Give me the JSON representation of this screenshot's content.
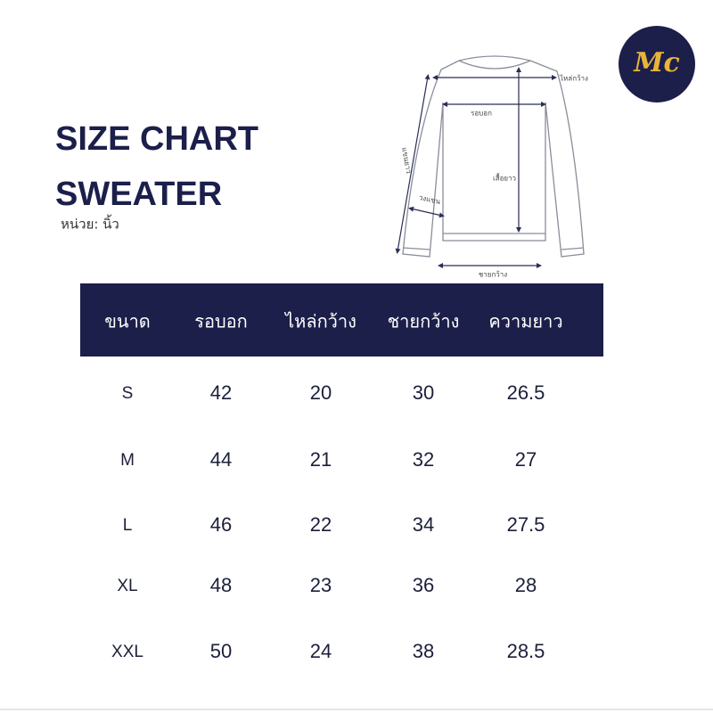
{
  "logo": "Mc",
  "header": {
    "title": "SIZE CHART",
    "subtitle": "SWEATER",
    "unit": "หน่วย: นิ้ว"
  },
  "diagram": {
    "shoulder": "ไหล่กว้าง",
    "chest": "รอบอก",
    "sleeve": "แขนยาว",
    "armhole": "วงแขน",
    "length": "เสื้อยาว",
    "hem": "ชายกว้าง"
  },
  "table": {
    "columns": [
      "ขนาด",
      "รอบอก",
      "ไหล่กว้าง",
      "ชายกว้าง",
      "ความยาว"
    ],
    "rows": [
      [
        "S",
        42,
        20,
        30,
        26.5
      ],
      [
        "M",
        44,
        21,
        32,
        27
      ],
      [
        "L",
        46,
        22,
        34,
        27.5
      ],
      [
        "XL",
        48,
        23,
        36,
        28
      ],
      [
        "XXL",
        50,
        24,
        38,
        28.5
      ]
    ]
  }
}
